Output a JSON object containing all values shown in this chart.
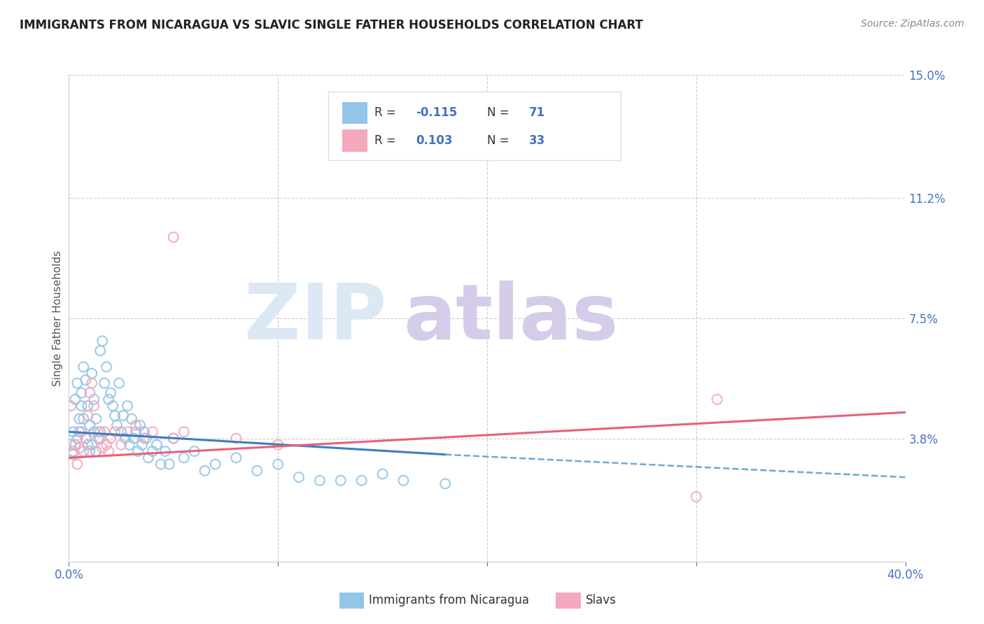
{
  "title": "IMMIGRANTS FROM NICARAGUA VS SLAVIC SINGLE FATHER HOUSEHOLDS CORRELATION CHART",
  "source": "Source: ZipAtlas.com",
  "ylabel": "Single Father Households",
  "xlim": [
    0.0,
    0.4
  ],
  "ylim": [
    0.0,
    0.15
  ],
  "blue_color": "#93c5e8",
  "pink_color": "#f4a8bc",
  "trend_blue_solid_color": "#3a7fc1",
  "trend_blue_dash_color": "#6aaad4",
  "trend_pink_color": "#e8607a",
  "watermark_zip_color": "#dce8f4",
  "watermark_atlas_color": "#d4cce8",
  "ytick_vals": [
    0.038,
    0.075,
    0.112,
    0.15
  ],
  "ytick_labels": [
    "3.8%",
    "7.5%",
    "11.2%",
    "15.0%"
  ],
  "blue_x": [
    0.001,
    0.002,
    0.002,
    0.003,
    0.003,
    0.004,
    0.004,
    0.005,
    0.005,
    0.006,
    0.006,
    0.007,
    0.007,
    0.008,
    0.008,
    0.009,
    0.009,
    0.01,
    0.01,
    0.011,
    0.011,
    0.012,
    0.012,
    0.013,
    0.013,
    0.014,
    0.015,
    0.015,
    0.016,
    0.017,
    0.018,
    0.019,
    0.02,
    0.021,
    0.022,
    0.023,
    0.024,
    0.025,
    0.026,
    0.027,
    0.028,
    0.029,
    0.03,
    0.031,
    0.032,
    0.033,
    0.034,
    0.035,
    0.036,
    0.037,
    0.038,
    0.04,
    0.042,
    0.044,
    0.046,
    0.048,
    0.05,
    0.055,
    0.06,
    0.065,
    0.07,
    0.08,
    0.09,
    0.1,
    0.11,
    0.12,
    0.13,
    0.14,
    0.15,
    0.16,
    0.18
  ],
  "blue_y": [
    0.036,
    0.034,
    0.04,
    0.036,
    0.05,
    0.038,
    0.055,
    0.04,
    0.044,
    0.048,
    0.052,
    0.044,
    0.06,
    0.038,
    0.056,
    0.036,
    0.048,
    0.034,
    0.042,
    0.058,
    0.036,
    0.04,
    0.05,
    0.034,
    0.044,
    0.038,
    0.04,
    0.065,
    0.068,
    0.055,
    0.06,
    0.05,
    0.052,
    0.048,
    0.045,
    0.042,
    0.055,
    0.04,
    0.045,
    0.038,
    0.048,
    0.036,
    0.044,
    0.038,
    0.04,
    0.034,
    0.042,
    0.036,
    0.04,
    0.038,
    0.032,
    0.034,
    0.036,
    0.03,
    0.034,
    0.03,
    0.038,
    0.032,
    0.034,
    0.028,
    0.03,
    0.032,
    0.028,
    0.03,
    0.026,
    0.025,
    0.025,
    0.025,
    0.027,
    0.025,
    0.024
  ],
  "pink_x": [
    0.001,
    0.002,
    0.003,
    0.004,
    0.005,
    0.006,
    0.007,
    0.008,
    0.009,
    0.01,
    0.011,
    0.012,
    0.013,
    0.014,
    0.015,
    0.016,
    0.017,
    0.018,
    0.019,
    0.02,
    0.022,
    0.025,
    0.028,
    0.032,
    0.036,
    0.04,
    0.05,
    0.055,
    0.08,
    0.1,
    0.05,
    0.3,
    0.31
  ],
  "pink_y": [
    0.048,
    0.033,
    0.036,
    0.03,
    0.035,
    0.04,
    0.034,
    0.038,
    0.045,
    0.052,
    0.055,
    0.048,
    0.034,
    0.04,
    0.038,
    0.035,
    0.04,
    0.036,
    0.034,
    0.038,
    0.04,
    0.036,
    0.04,
    0.042,
    0.038,
    0.04,
    0.1,
    0.04,
    0.038,
    0.036,
    0.038,
    0.02,
    0.05
  ],
  "blue_trend_x0": 0.0,
  "blue_trend_y0": 0.04,
  "blue_trend_x1": 0.18,
  "blue_trend_y1": 0.033,
  "blue_trend_dash_x0": 0.18,
  "blue_trend_dash_y0": 0.033,
  "blue_trend_dash_x1": 0.4,
  "blue_trend_dash_y1": 0.026,
  "pink_trend_x0": 0.0,
  "pink_trend_y0": 0.032,
  "pink_trend_x1": 0.4,
  "pink_trend_y1": 0.046
}
